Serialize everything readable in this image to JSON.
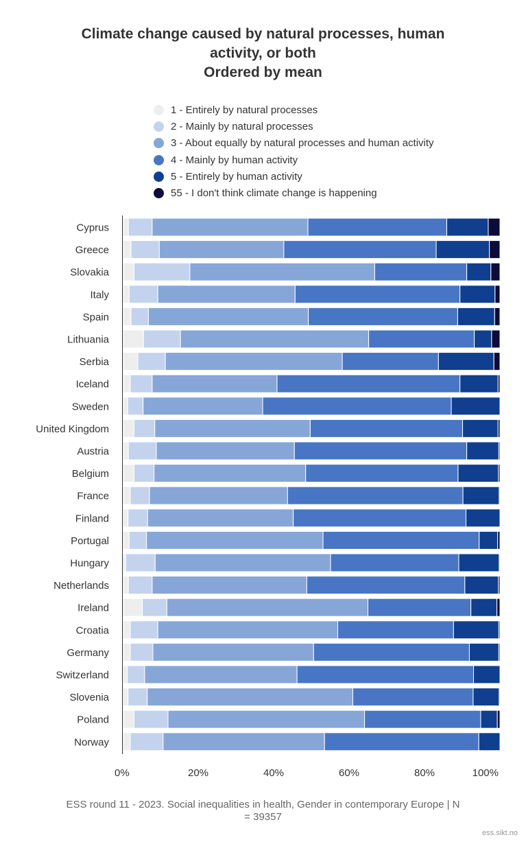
{
  "chart_data": {
    "type": "bar",
    "orientation": "horizontal",
    "stacked": true,
    "percent": true,
    "title_lines": [
      "Climate change caused by natural processes, human",
      "activity, or both",
      "Ordered by mean"
    ],
    "categories": [
      "Cyprus",
      "Greece",
      "Slovakia",
      "Italy",
      "Spain",
      "Lithuania",
      "Serbia",
      "Iceland",
      "Sweden",
      "United Kingdom",
      "Austria",
      "Belgium",
      "France",
      "Finland",
      "Portugal",
      "Hungary",
      "Netherlands",
      "Ireland",
      "Croatia",
      "Germany",
      "Switzerland",
      "Slovenia",
      "Poland",
      "Norway"
    ],
    "series": [
      {
        "name": "1 - Entirely by natural processes",
        "color": "#eeeeef",
        "values": [
          1.5,
          2.2,
          3.0,
          1.7,
          2.2,
          5.5,
          4.0,
          2.0,
          1.3,
          3.0,
          1.5,
          3.0,
          2.0,
          1.4,
          1.7,
          0.8,
          1.5,
          5.2,
          2.0,
          2.0,
          1.2,
          1.4,
          3.0,
          2.0
        ]
      },
      {
        "name": "2 - Mainly by natural processes",
        "color": "#c4d3ed",
        "values": [
          6.3,
          7.5,
          14.8,
          7.6,
          4.6,
          9.8,
          7.3,
          5.8,
          4.1,
          5.5,
          7.4,
          5.3,
          5.1,
          5.2,
          4.6,
          7.8,
          6.3,
          6.5,
          7.3,
          6.0,
          4.6,
          5.1,
          9.0,
          8.7
        ]
      },
      {
        "name": "3 - About equally by natural processes and human activity",
        "color": "#87a6d8",
        "values": [
          41.3,
          33.0,
          49.0,
          36.4,
          42.4,
          49.9,
          46.9,
          33.1,
          31.7,
          41.2,
          36.6,
          40.2,
          36.6,
          38.6,
          46.8,
          46.5,
          41.0,
          53.3,
          47.7,
          42.6,
          40.4,
          54.5,
          52.1,
          42.8
        ]
      },
      {
        "name": "4 - Mainly by human activity",
        "color": "#4876c4",
        "values": [
          36.8,
          40.4,
          24.4,
          43.7,
          39.6,
          28.0,
          25.5,
          48.5,
          50.0,
          40.4,
          45.7,
          40.4,
          46.5,
          45.8,
          41.4,
          34.0,
          41.9,
          27.3,
          30.7,
          41.3,
          46.8,
          31.9,
          30.8,
          40.9
        ]
      },
      {
        "name": "5 - Entirely by human activity",
        "color": "#0f3f8e",
        "values": [
          11.0,
          14.1,
          6.4,
          9.3,
          9.8,
          4.6,
          14.7,
          10.1,
          12.9,
          9.4,
          8.5,
          10.7,
          9.6,
          9.0,
          4.9,
          10.7,
          8.9,
          6.9,
          12.0,
          7.8,
          7.0,
          6.9,
          4.4,
          5.6
        ]
      },
      {
        "name": "55 - I don't think climate change is happening",
        "color": "#0d0b3a",
        "values": [
          3.1,
          2.8,
          2.4,
          1.3,
          1.4,
          2.2,
          1.6,
          0.5,
          0.0,
          0.5,
          0.3,
          0.4,
          0.2,
          0.0,
          0.6,
          0.2,
          0.4,
          0.8,
          0.3,
          0.3,
          0.0,
          0.2,
          0.7,
          0.0
        ]
      }
    ],
    "xlim": [
      0,
      100
    ],
    "xticks": [
      "0%",
      "20%",
      "40%",
      "60%",
      "80%",
      "100%"
    ],
    "legend_position": "top",
    "grid": false
  },
  "footer": {
    "source_line1": "ESS round 11 - 2023. Social inequalities in health, Gender in contemporary Europe | N",
    "source_line2": "= 39357",
    "credit": "ess.sikt.no"
  }
}
